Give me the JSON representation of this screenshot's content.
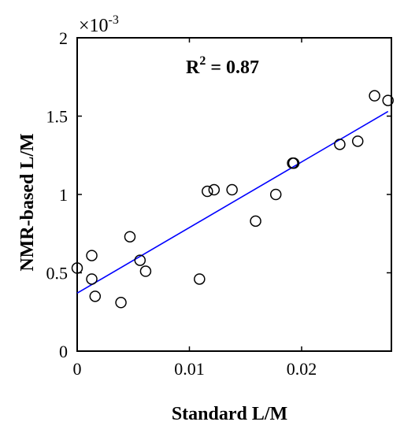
{
  "chart_data": {
    "type": "scatter",
    "xlabel": "Standard L/M",
    "ylabel": "NMR-based  L/M",
    "xlim": [
      0,
      0.028
    ],
    "ylim": [
      0,
      2
    ],
    "x_ticks": [
      0,
      0.01,
      0.02
    ],
    "x_tick_labels": [
      "0",
      "0.01",
      "0.02"
    ],
    "y_ticks": [
      0,
      0.5,
      1,
      1.5,
      2
    ],
    "y_tick_labels": [
      "0",
      "0.5",
      "1",
      "1.5",
      "2"
    ],
    "y_multiplier_base": "×10",
    "y_multiplier_exp": "-3",
    "annotation": {
      "base": "R",
      "sup": "2",
      "rest": " = 0.87"
    },
    "grid": false,
    "box": true,
    "points": [
      {
        "x": 0.0,
        "y": 0.53
      },
      {
        "x": 0.0013,
        "y": 0.61
      },
      {
        "x": 0.0013,
        "y": 0.46
      },
      {
        "x": 0.0016,
        "y": 0.35
      },
      {
        "x": 0.0039,
        "y": 0.31
      },
      {
        "x": 0.0047,
        "y": 0.73
      },
      {
        "x": 0.0056,
        "y": 0.58
      },
      {
        "x": 0.0061,
        "y": 0.51
      },
      {
        "x": 0.0109,
        "y": 0.46
      },
      {
        "x": 0.0116,
        "y": 1.02
      },
      {
        "x": 0.0122,
        "y": 1.03
      },
      {
        "x": 0.0138,
        "y": 1.03
      },
      {
        "x": 0.0159,
        "y": 0.83
      },
      {
        "x": 0.0177,
        "y": 1.0
      },
      {
        "x": 0.0192,
        "y": 1.2
      },
      {
        "x": 0.0193,
        "y": 1.2
      },
      {
        "x": 0.0234,
        "y": 1.32
      },
      {
        "x": 0.025,
        "y": 1.34
      },
      {
        "x": 0.0265,
        "y": 1.63
      },
      {
        "x": 0.0277,
        "y": 1.6
      }
    ],
    "fit_line": {
      "x": [
        0,
        0.0277
      ],
      "y": [
        0.37,
        1.53
      ],
      "color": "#0000ff"
    },
    "marker_color": "#000000"
  }
}
